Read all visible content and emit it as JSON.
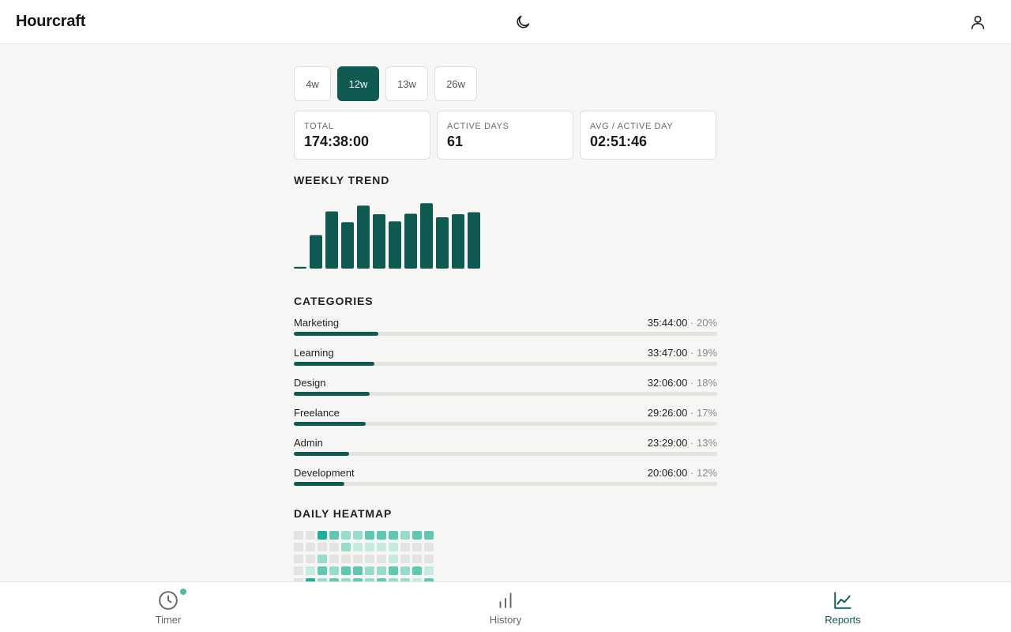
{
  "app": {
    "title": "Hourcraft"
  },
  "header": {
    "theme_icon": "moon-icon",
    "account_icon": "user-icon"
  },
  "ranges": [
    {
      "label": "4w",
      "active": false
    },
    {
      "label": "12w",
      "active": true
    },
    {
      "label": "13w",
      "active": false
    },
    {
      "label": "26w",
      "active": false
    }
  ],
  "stats": [
    {
      "label": "TOTAL",
      "value": "174:38:00"
    },
    {
      "label": "ACTIVE DAYS",
      "value": "61"
    },
    {
      "label": "AVG / ACTIVE DAY",
      "value": "02:51:46"
    }
  ],
  "trend": {
    "title": "WEEKLY TREND"
  },
  "chart_data": {
    "type": "bar",
    "values": [
      0.7,
      13.1,
      22.4,
      18.2,
      24.7,
      21.3,
      18.5,
      21.5,
      25.6,
      20.1,
      21.3,
      22.1
    ],
    "ylim": [
      0,
      26
    ],
    "color": "#0f5b52"
  },
  "categories": {
    "title": "CATEGORIES",
    "items": [
      {
        "name": "Marketing",
        "duration": "35:44:00",
        "percent": "20%",
        "fraction": 0.2
      },
      {
        "name": "Learning",
        "duration": "33:47:00",
        "percent": "19%",
        "fraction": 0.19
      },
      {
        "name": "Design",
        "duration": "32:06:00",
        "percent": "18%",
        "fraction": 0.18
      },
      {
        "name": "Freelance",
        "duration": "29:26:00",
        "percent": "17%",
        "fraction": 0.17
      },
      {
        "name": "Admin",
        "duration": "23:29:00",
        "percent": "13%",
        "fraction": 0.13
      },
      {
        "name": "Development",
        "duration": "20:06:00",
        "percent": "12%",
        "fraction": 0.12
      }
    ],
    "separator": "·"
  },
  "heatmap": {
    "title": "DAILY HEATMAP",
    "levels": [
      [
        0,
        0,
        4,
        3,
        2,
        2,
        3,
        3,
        3,
        2,
        3,
        3
      ],
      [
        0,
        0,
        0,
        0,
        2,
        1,
        1,
        1,
        1,
        0,
        0,
        0
      ],
      [
        0,
        0,
        2,
        0,
        0,
        0,
        0,
        0,
        1,
        0,
        0,
        0
      ],
      [
        0,
        1,
        3,
        2,
        3,
        3,
        2,
        2,
        3,
        2,
        3,
        1
      ],
      [
        0,
        4,
        2,
        3,
        2,
        3,
        2,
        3,
        2,
        2,
        1,
        3
      ]
    ],
    "colors": [
      "#e3e3e1",
      "#c4ebe1",
      "#95dccb",
      "#5ec8b3",
      "#1fae98"
    ]
  },
  "nav": [
    {
      "label": "Timer",
      "icon": "clock-icon",
      "active": false,
      "badge": true
    },
    {
      "label": "History",
      "icon": "bar-chart-icon",
      "active": false,
      "badge": false
    },
    {
      "label": "Reports",
      "icon": "line-chart-icon",
      "active": true,
      "badge": false
    }
  ]
}
